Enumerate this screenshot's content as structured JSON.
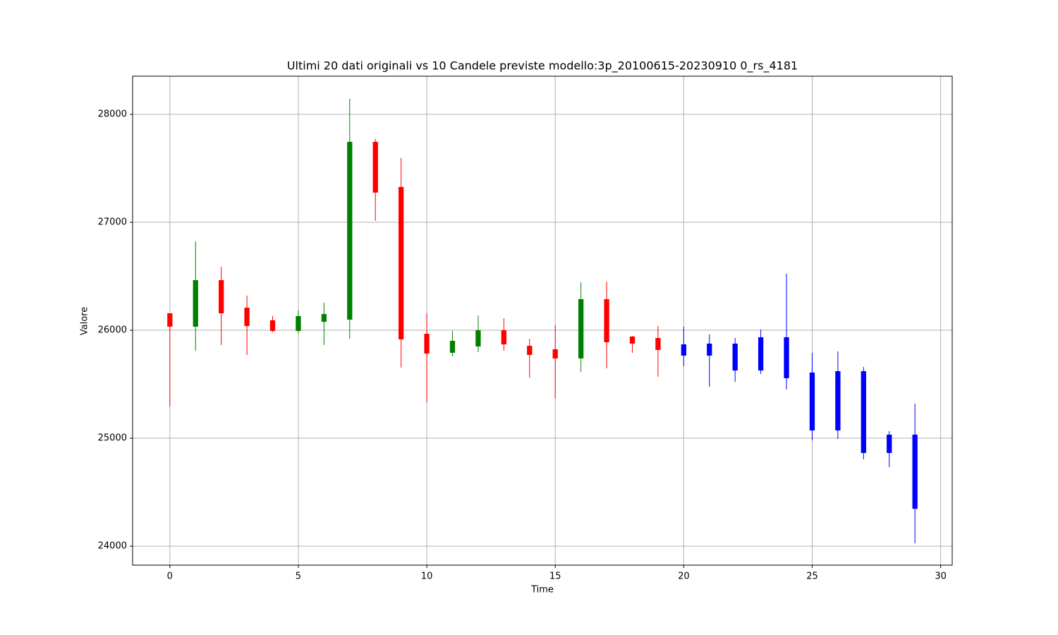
{
  "chart_data": {
    "type": "candlestick",
    "title": "Ultimi 20 dati originali vs 10 Candele previste modello:3p_20100615-20230910 0_rs_4181",
    "xlabel": "Time",
    "ylabel": "Valore",
    "x": [
      0,
      1,
      2,
      3,
      4,
      5,
      6,
      7,
      8,
      9,
      10,
      11,
      12,
      13,
      14,
      15,
      16,
      17,
      18,
      19,
      20,
      21,
      22,
      23,
      24,
      25,
      26,
      27,
      28,
      29
    ],
    "open": [
      26157,
      26033,
      26464,
      26209,
      26092,
      25993,
      26078,
      26098,
      27745,
      27327,
      25967,
      25791,
      25850,
      26000,
      25856,
      25824,
      25739,
      26288,
      25941,
      25928,
      25869,
      25876,
      25876,
      25935,
      25935,
      25608,
      25621,
      25621,
      25033,
      25033
    ],
    "high": [
      26157,
      26824,
      26588,
      26320,
      26131,
      26183,
      26255,
      28144,
      27771,
      27595,
      26157,
      25993,
      26137,
      26111,
      25922,
      26046,
      26444,
      26451,
      25948,
      26039,
      26033,
      25961,
      25928,
      26007,
      26523,
      25791,
      25804,
      25660,
      25065,
      25320
    ],
    "low": [
      25294,
      25810,
      25863,
      25771,
      25980,
      25967,
      25863,
      25922,
      27013,
      25654,
      25333,
      25758,
      25797,
      25810,
      25562,
      25366,
      25614,
      25647,
      25791,
      25569,
      25667,
      25477,
      25523,
      25595,
      25451,
      24980,
      24993,
      24804,
      24732,
      24026
    ],
    "close": [
      26033,
      26464,
      26157,
      26039,
      25993,
      26131,
      26150,
      27745,
      27275,
      25915,
      25784,
      25902,
      26000,
      25869,
      25771,
      25739,
      26288,
      25889,
      25876,
      25817,
      25765,
      25765,
      25627,
      25627,
      25556,
      25072,
      25072,
      24863,
      24863,
      24346
    ],
    "colors": [
      "red",
      "green",
      "red",
      "red",
      "red",
      "green",
      "green",
      "green",
      "red",
      "red",
      "red",
      "green",
      "green",
      "red",
      "red",
      "red",
      "green",
      "red",
      "red",
      "red",
      "blue",
      "blue",
      "blue",
      "blue",
      "blue",
      "blue",
      "blue",
      "blue",
      "blue",
      "blue"
    ],
    "xlim": [
      -1.45,
      30.45
    ],
    "ylim": [
      23824,
      28353
    ],
    "xticks": [
      0,
      5,
      10,
      15,
      20,
      25,
      30
    ],
    "yticks": [
      24000,
      25000,
      26000,
      27000,
      28000
    ],
    "grid": true
  }
}
